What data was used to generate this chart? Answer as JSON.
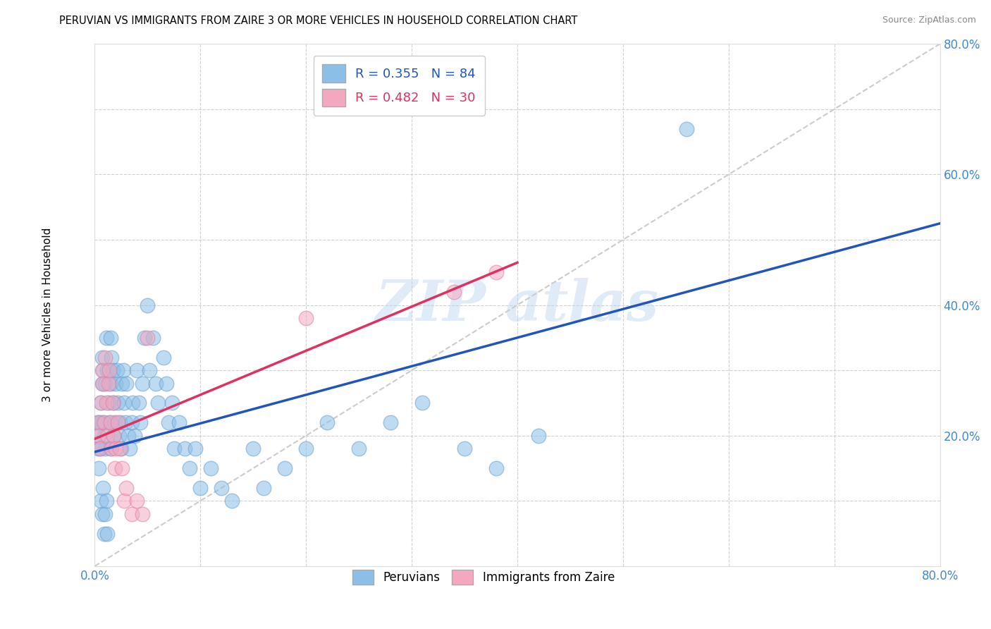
{
  "title": "PERUVIAN VS IMMIGRANTS FROM ZAIRE 3 OR MORE VEHICLES IN HOUSEHOLD CORRELATION CHART",
  "source_text": "Source: ZipAtlas.com",
  "ylabel": "3 or more Vehicles in Household",
  "xlim": [
    0.0,
    0.8
  ],
  "ylim": [
    0.0,
    0.8
  ],
  "peruvian_color": "#8bbfe8",
  "peruvian_edge": "#6aa0d0",
  "zaire_color": "#f4a8c0",
  "zaire_edge": "#e080a0",
  "blue_line_color": "#2255bb",
  "pink_line_color": "#e03060",
  "gray_line_color": "#cccccc",
  "R_peruvian": 0.355,
  "N_peruvian": 84,
  "R_zaire": 0.482,
  "N_zaire": 30,
  "legend_label_peruvian": "Peruvians",
  "legend_label_zaire": "Immigrants from Zaire",
  "blue_line_x": [
    0.0,
    0.8
  ],
  "blue_line_y": [
    0.175,
    0.525
  ],
  "pink_line_x": [
    0.0,
    0.4
  ],
  "pink_line_y": [
    0.195,
    0.465
  ],
  "peruvian_x": [
    0.003,
    0.004,
    0.005,
    0.006,
    0.007,
    0.007,
    0.008,
    0.008,
    0.009,
    0.01,
    0.01,
    0.011,
    0.012,
    0.013,
    0.014,
    0.015,
    0.015,
    0.016,
    0.017,
    0.018,
    0.018,
    0.019,
    0.02,
    0.021,
    0.022,
    0.023,
    0.024,
    0.025,
    0.026,
    0.027,
    0.028,
    0.029,
    0.03,
    0.032,
    0.033,
    0.035,
    0.036,
    0.038,
    0.04,
    0.042,
    0.043,
    0.045,
    0.047,
    0.05,
    0.052,
    0.055,
    0.058,
    0.06,
    0.065,
    0.068,
    0.07,
    0.073,
    0.075,
    0.08,
    0.085,
    0.09,
    0.095,
    0.1,
    0.11,
    0.12,
    0.13,
    0.15,
    0.16,
    0.18,
    0.2,
    0.22,
    0.25,
    0.28,
    0.31,
    0.35,
    0.38,
    0.42,
    0.003,
    0.004,
    0.005,
    0.006,
    0.007,
    0.008,
    0.009,
    0.01,
    0.011,
    0.012,
    0.56,
    0.015
  ],
  "peruvian_y": [
    0.22,
    0.2,
    0.18,
    0.25,
    0.28,
    0.32,
    0.3,
    0.22,
    0.2,
    0.28,
    0.18,
    0.35,
    0.3,
    0.25,
    0.22,
    0.35,
    0.28,
    0.32,
    0.3,
    0.25,
    0.2,
    0.22,
    0.28,
    0.3,
    0.25,
    0.2,
    0.22,
    0.18,
    0.28,
    0.3,
    0.25,
    0.22,
    0.28,
    0.2,
    0.18,
    0.22,
    0.25,
    0.2,
    0.3,
    0.25,
    0.22,
    0.28,
    0.35,
    0.4,
    0.3,
    0.35,
    0.28,
    0.25,
    0.32,
    0.28,
    0.22,
    0.25,
    0.18,
    0.22,
    0.18,
    0.15,
    0.18,
    0.12,
    0.15,
    0.12,
    0.1,
    0.18,
    0.12,
    0.15,
    0.18,
    0.22,
    0.18,
    0.22,
    0.25,
    0.18,
    0.15,
    0.2,
    0.18,
    0.15,
    0.22,
    0.1,
    0.08,
    0.12,
    0.05,
    0.08,
    0.1,
    0.05,
    0.67,
    0.18
  ],
  "zaire_x": [
    0.003,
    0.004,
    0.005,
    0.006,
    0.007,
    0.008,
    0.009,
    0.01,
    0.011,
    0.012,
    0.013,
    0.014,
    0.015,
    0.016,
    0.017,
    0.018,
    0.019,
    0.02,
    0.022,
    0.024,
    0.026,
    0.028,
    0.03,
    0.035,
    0.04,
    0.045,
    0.05,
    0.2,
    0.34,
    0.38
  ],
  "zaire_y": [
    0.22,
    0.2,
    0.18,
    0.25,
    0.3,
    0.28,
    0.22,
    0.32,
    0.25,
    0.2,
    0.28,
    0.3,
    0.22,
    0.18,
    0.25,
    0.2,
    0.15,
    0.18,
    0.22,
    0.18,
    0.15,
    0.1,
    0.12,
    0.08,
    0.1,
    0.08,
    0.35,
    0.38,
    0.42,
    0.45
  ]
}
